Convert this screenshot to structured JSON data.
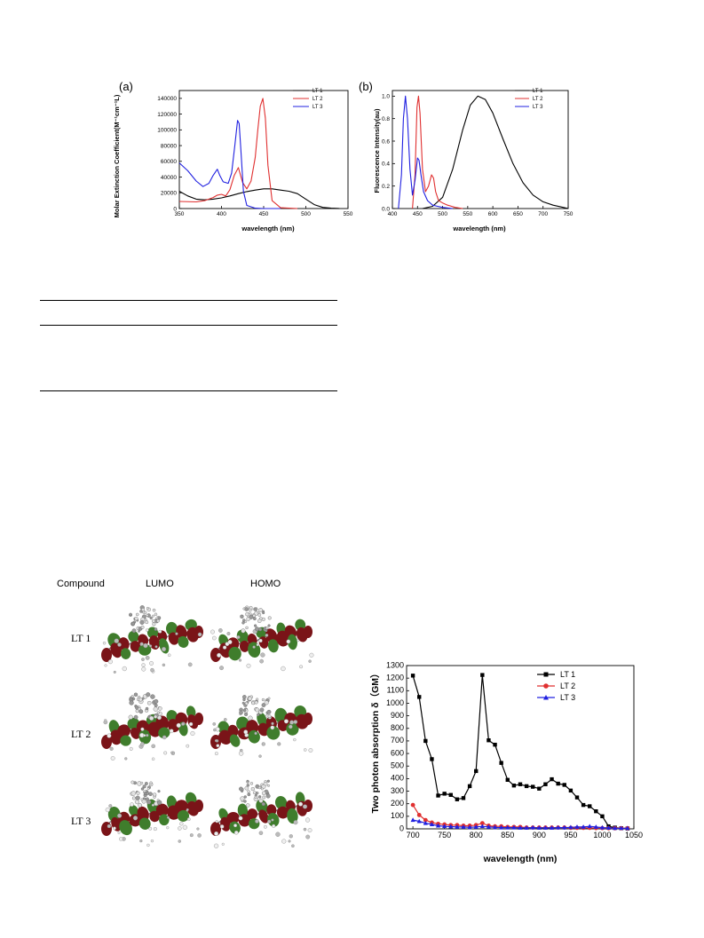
{
  "figure_a": {
    "panel_label": "(a)",
    "xlabel": "wavelength (nm)",
    "ylabel": "Molar Extinction Coefficient(M⁻¹cm⁻¹L)",
    "legend": [
      "LT 1",
      "LT 2",
      "LT 3"
    ]
  },
  "figure_b": {
    "panel_label": "(b)",
    "xlabel": "wavelength (nm)",
    "ylabel": "Fluorescence Intensity(au)",
    "legend": [
      "LT 1",
      "LT 2",
      "LT 3"
    ]
  },
  "figure_c": {
    "xlabel": "wavelength (nm)",
    "ylabel": "Two photon absorption δ（GM）",
    "legend": [
      "LT 1",
      "LT 2",
      "LT 3"
    ]
  },
  "mo_table": {
    "headers": [
      "Compound",
      "LUMO",
      "HOMO"
    ],
    "rows": [
      "LT 1",
      "LT 2",
      "LT 3"
    ]
  },
  "colors": {
    "LT1": "#000000",
    "LT2": "#e03030",
    "LT3": "#2020e0",
    "orbital_green": "#3f7d2c",
    "orbital_red": "#7a1418"
  },
  "chart_data": [
    {
      "type": "line",
      "title": "",
      "xlabel": "wavelength (nm)",
      "ylabel": "Molar Extinction Coefficient(M⁻¹cm⁻¹L)",
      "xlim": [
        350,
        550
      ],
      "ylim": [
        0,
        150000
      ],
      "xticks": [
        350,
        400,
        450,
        500,
        550
      ],
      "yticks": [
        0,
        20000,
        40000,
        60000,
        80000,
        100000,
        120000,
        140000
      ],
      "legend_position": "top-right",
      "series": [
        {
          "name": "LT 1",
          "color": "#000000",
          "x": [
            350,
            360,
            370,
            380,
            390,
            400,
            410,
            420,
            430,
            440,
            450,
            460,
            470,
            480,
            490,
            500,
            510,
            520,
            530,
            540
          ],
          "y": [
            22000,
            16000,
            12000,
            11000,
            12000,
            13500,
            16000,
            19000,
            21500,
            23500,
            25000,
            25000,
            23500,
            22000,
            19000,
            12000,
            5000,
            1500,
            500,
            0
          ]
        },
        {
          "name": "LT 2",
          "color": "#e03030",
          "x": [
            350,
            370,
            380,
            390,
            395,
            400,
            405,
            410,
            415,
            420,
            425,
            430,
            435,
            440,
            443,
            446,
            449,
            452,
            455,
            460,
            470,
            490
          ],
          "y": [
            9000,
            8500,
            10000,
            14000,
            17000,
            18000,
            16000,
            24000,
            42000,
            52000,
            33000,
            25000,
            35000,
            65000,
            100000,
            130000,
            140000,
            115000,
            55000,
            10000,
            1000,
            0
          ]
        },
        {
          "name": "LT 3",
          "color": "#2020e0",
          "x": [
            350,
            360,
            370,
            378,
            385,
            390,
            395,
            398,
            402,
            408,
            412,
            416,
            419,
            421,
            423,
            426,
            430,
            440,
            450,
            470
          ],
          "y": [
            58000,
            48000,
            35000,
            28000,
            32000,
            42000,
            50000,
            42000,
            34000,
            32000,
            45000,
            82000,
            112000,
            108000,
            75000,
            22000,
            4000,
            500,
            0,
            0
          ]
        }
      ]
    },
    {
      "type": "line",
      "title": "",
      "xlabel": "wavelength (nm)",
      "ylabel": "Fluorescence Intensity(au)",
      "xlim": [
        400,
        750
      ],
      "ylim": [
        0,
        1.05
      ],
      "xticks": [
        400,
        450,
        500,
        550,
        600,
        650,
        700,
        750
      ],
      "yticks": [
        0.0,
        0.2,
        0.4,
        0.6,
        0.8,
        1.0
      ],
      "legend_position": "top-right",
      "series": [
        {
          "name": "LT 1",
          "color": "#000000",
          "x": [
            460,
            480,
            500,
            520,
            540,
            555,
            570,
            585,
            600,
            620,
            640,
            660,
            680,
            700,
            720,
            740,
            750
          ],
          "y": [
            0,
            0.02,
            0.1,
            0.35,
            0.7,
            0.92,
            1.0,
            0.97,
            0.85,
            0.62,
            0.4,
            0.23,
            0.12,
            0.06,
            0.03,
            0.01,
            0.0
          ]
        },
        {
          "name": "LT 2",
          "color": "#e03030",
          "x": [
            440,
            445,
            449,
            452,
            455,
            460,
            466,
            472,
            478,
            482,
            486,
            492,
            500,
            510,
            525,
            540
          ],
          "y": [
            0,
            0.3,
            0.9,
            1.0,
            0.85,
            0.35,
            0.15,
            0.2,
            0.3,
            0.27,
            0.15,
            0.07,
            0.05,
            0.03,
            0.01,
            0.0
          ]
        },
        {
          "name": "LT 3",
          "color": "#2020e0",
          "x": [
            412,
            418,
            422,
            426,
            430,
            435,
            440,
            445,
            450,
            453,
            457,
            462,
            470,
            480,
            490,
            500,
            520
          ],
          "y": [
            0,
            0.3,
            0.8,
            1.0,
            0.8,
            0.35,
            0.12,
            0.25,
            0.45,
            0.43,
            0.3,
            0.15,
            0.07,
            0.03,
            0.02,
            0.01,
            0.0
          ]
        }
      ]
    },
    {
      "type": "line",
      "title": "",
      "xlabel": "wavelength (nm)",
      "ylabel": "Two photon absorption δ（GM）",
      "xlim": [
        690,
        1050
      ],
      "ylim": [
        0,
        1300
      ],
      "xticks": [
        700,
        750,
        800,
        850,
        900,
        950,
        1000,
        1050
      ],
      "yticks": [
        0,
        100,
        200,
        300,
        400,
        500,
        600,
        700,
        800,
        900,
        1000,
        1100,
        1200,
        1300
      ],
      "legend_position": "top-right",
      "series": [
        {
          "name": "LT 1",
          "color": "#000000",
          "marker": "square",
          "x": [
            700,
            710,
            720,
            730,
            740,
            750,
            760,
            770,
            780,
            790,
            800,
            810,
            820,
            830,
            840,
            850,
            860,
            870,
            880,
            890,
            900,
            910,
            920,
            930,
            940,
            950,
            960,
            970,
            980,
            990,
            1000,
            1010,
            1020,
            1030,
            1040
          ],
          "y": [
            1220,
            1050,
            700,
            555,
            265,
            280,
            270,
            235,
            245,
            340,
            460,
            1225,
            705,
            670,
            525,
            390,
            345,
            355,
            340,
            335,
            320,
            355,
            395,
            360,
            350,
            305,
            250,
            190,
            180,
            140,
            100,
            20,
            10,
            5,
            3
          ]
        },
        {
          "name": "LT 2",
          "color": "#e03030",
          "marker": "circle",
          "x": [
            700,
            710,
            720,
            730,
            740,
            750,
            760,
            770,
            780,
            790,
            800,
            810,
            820,
            830,
            840,
            850,
            860,
            870,
            880,
            890,
            900,
            910,
            920,
            930,
            940,
            950,
            960,
            970,
            980,
            990,
            1000,
            1010,
            1020,
            1030,
            1040
          ],
          "y": [
            190,
            110,
            70,
            50,
            40,
            35,
            30,
            30,
            25,
            25,
            30,
            45,
            25,
            20,
            20,
            15,
            15,
            15,
            10,
            10,
            10,
            10,
            10,
            10,
            10,
            8,
            8,
            8,
            8,
            6,
            6,
            5,
            5,
            5,
            5
          ]
        },
        {
          "name": "LT 3",
          "color": "#2020e0",
          "marker": "triangle",
          "x": [
            700,
            710,
            720,
            730,
            740,
            750,
            760,
            770,
            780,
            790,
            800,
            810,
            820,
            830,
            840,
            850,
            860,
            870,
            880,
            890,
            900,
            910,
            920,
            930,
            940,
            950,
            960,
            970,
            980,
            990,
            1000,
            1010,
            1020,
            1030,
            1040
          ],
          "y": [
            70,
            60,
            45,
            35,
            25,
            20,
            18,
            15,
            15,
            12,
            15,
            20,
            15,
            12,
            10,
            10,
            10,
            8,
            8,
            10,
            8,
            8,
            8,
            10,
            10,
            12,
            15,
            15,
            20,
            15,
            10,
            8,
            5,
            5,
            5
          ]
        }
      ]
    }
  ]
}
